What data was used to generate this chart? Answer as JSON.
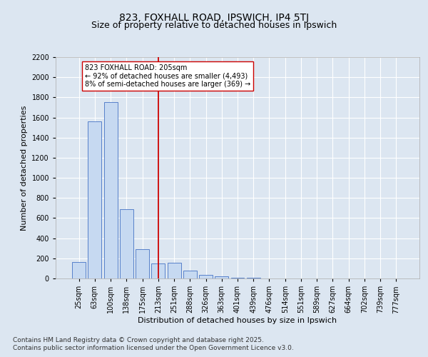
{
  "title": "823, FOXHALL ROAD, IPSWICH, IP4 5TJ",
  "subtitle": "Size of property relative to detached houses in Ipswich",
  "xlabel": "Distribution of detached houses by size in Ipswich",
  "ylabel": "Number of detached properties",
  "categories": [
    "25sqm",
    "63sqm",
    "100sqm",
    "138sqm",
    "175sqm",
    "213sqm",
    "251sqm",
    "288sqm",
    "326sqm",
    "363sqm",
    "401sqm",
    "439sqm",
    "476sqm",
    "514sqm",
    "551sqm",
    "589sqm",
    "627sqm",
    "664sqm",
    "702sqm",
    "739sqm",
    "777sqm"
  ],
  "values": [
    160,
    1560,
    1750,
    690,
    290,
    150,
    155,
    75,
    35,
    20,
    10,
    5,
    3,
    2,
    0,
    0,
    0,
    0,
    0,
    0,
    0
  ],
  "bar_color": "#c6d9f1",
  "bar_edge_color": "#4472c4",
  "vline_x_index": 5,
  "vline_color": "#cc0000",
  "annotation_line1": "823 FOXHALL ROAD: 205sqm",
  "annotation_line2": "← 92% of detached houses are smaller (4,493)",
  "annotation_line3": "8% of semi-detached houses are larger (369) →",
  "annotation_box_color": "#cc0000",
  "footnote1": "Contains HM Land Registry data © Crown copyright and database right 2025.",
  "footnote2": "Contains public sector information licensed under the Open Government Licence v3.0.",
  "bg_color": "#dce6f1",
  "plot_bg_color": "#dce6f1",
  "ylim": [
    0,
    2200
  ],
  "yticks": [
    0,
    200,
    400,
    600,
    800,
    1000,
    1200,
    1400,
    1600,
    1800,
    2000,
    2200
  ],
  "title_fontsize": 10,
  "subtitle_fontsize": 9,
  "axis_label_fontsize": 8,
  "tick_fontsize": 7,
  "annotation_fontsize": 7,
  "footnote_fontsize": 6.5
}
